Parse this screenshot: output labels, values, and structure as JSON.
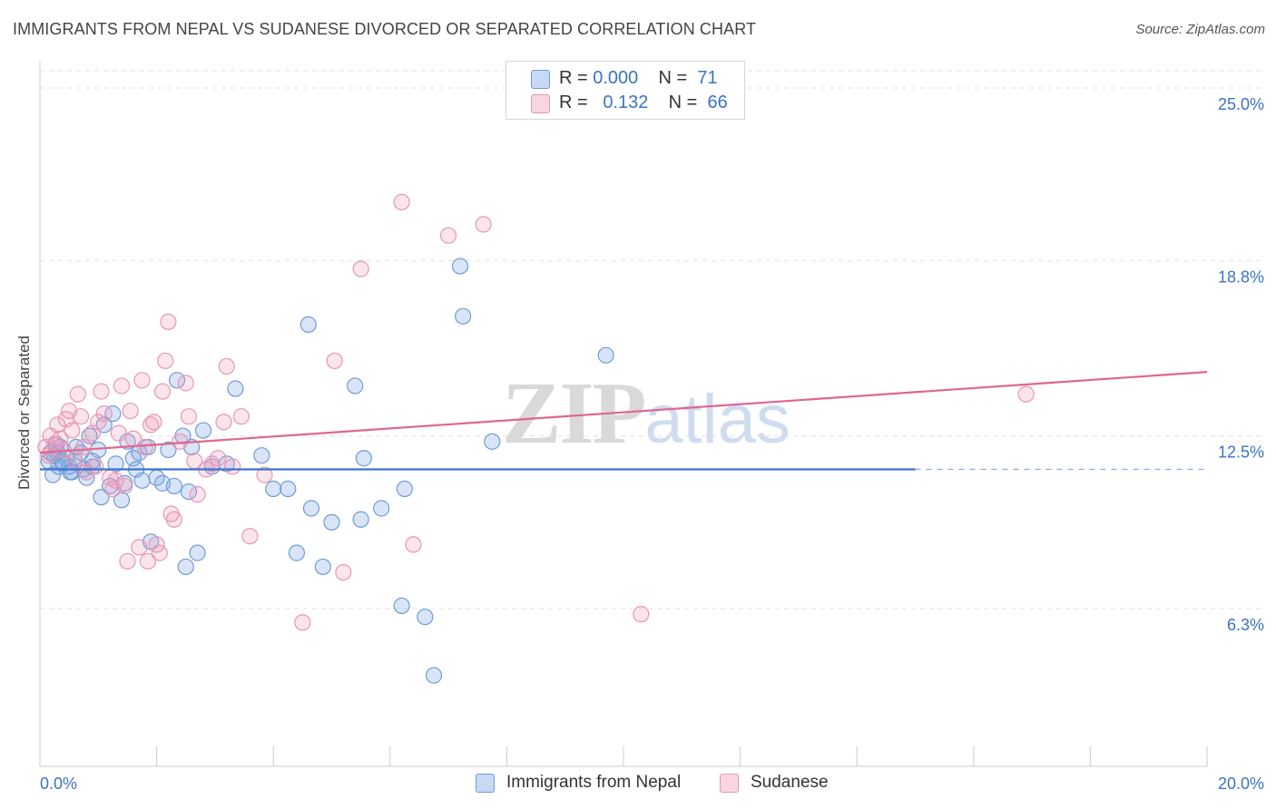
{
  "title": "IMMIGRANTS FROM NEPAL VS SUDANESE DIVORCED OR SEPARATED CORRELATION CHART",
  "source": "Source: ZipAtlas.com",
  "watermark": {
    "zip": "ZIP",
    "atlas": "atlas"
  },
  "legend_top": [
    {
      "r_label": "R =",
      "r_value": "0.000",
      "n_label": "N =",
      "n_value": "71"
    },
    {
      "r_label": "R =",
      "r_value": "0.132",
      "n_label": "N =",
      "n_value": "66"
    }
  ],
  "colors": {
    "nepal_fill": "rgba(130,170,230,0.30)",
    "nepal_stroke": "#6f9bd8",
    "nepal_line": "#3a74d1",
    "sudan_fill": "rgba(240,150,180,0.25)",
    "sudan_stroke": "#e597b4",
    "sudan_line": "#e0668f",
    "grid": "#e0e0e0",
    "tick_label": "#3b73c4"
  },
  "chart_data": {
    "type": "scatter",
    "title": "IMMIGRANTS FROM NEPAL VS SUDANESE DIVORCED OR SEPARATED CORRELATION CHART",
    "ylabel": "Divorced or Separated",
    "xlabel": "",
    "xlim": [
      0,
      20
    ],
    "ylim": [
      0,
      26.0
    ],
    "x_ticks_labels": [
      "0.0%",
      "20.0%"
    ],
    "y_ticks": [
      6.3,
      12.5,
      18.8,
      25.0
    ],
    "y_tick_labels": [
      "6.3%",
      "12.5%",
      "18.8%",
      "25.0%"
    ],
    "grid": "horizontal dashed",
    "legend_position": "bottom-center",
    "series": [
      {
        "name": "Immigrants from Nepal",
        "R": 0.0,
        "N": 71,
        "trend": {
          "x": [
            0,
            15.0
          ],
          "y": [
            11.3,
            11.3
          ],
          "dashed_extension_to": 20.0
        },
        "points": [
          [
            0.15,
            11.6
          ],
          [
            0.25,
            11.8
          ],
          [
            0.3,
            11.9
          ],
          [
            0.35,
            12.1
          ],
          [
            0.4,
            11.5
          ],
          [
            0.45,
            11.7
          ],
          [
            0.5,
            11.4
          ],
          [
            0.55,
            11.2
          ],
          [
            0.6,
            11.6
          ],
          [
            0.7,
            11.9
          ],
          [
            0.75,
            11.3
          ],
          [
            0.8,
            11.0
          ],
          [
            0.85,
            12.5
          ],
          [
            0.9,
            11.4
          ],
          [
            1.0,
            12.0
          ],
          [
            1.05,
            10.3
          ],
          [
            1.1,
            12.9
          ],
          [
            1.2,
            10.7
          ],
          [
            1.25,
            13.3
          ],
          [
            1.3,
            11.5
          ],
          [
            1.4,
            10.2
          ],
          [
            1.45,
            10.8
          ],
          [
            1.5,
            12.3
          ],
          [
            1.6,
            11.7
          ],
          [
            1.7,
            11.9
          ],
          [
            1.75,
            10.9
          ],
          [
            1.85,
            12.1
          ],
          [
            1.9,
            8.7
          ],
          [
            2.0,
            11.0
          ],
          [
            2.1,
            10.8
          ],
          [
            2.2,
            12.0
          ],
          [
            2.3,
            10.7
          ],
          [
            2.35,
            14.5
          ],
          [
            2.45,
            12.5
          ],
          [
            2.55,
            10.5
          ],
          [
            2.6,
            12.1
          ],
          [
            2.7,
            8.3
          ],
          [
            2.8,
            12.7
          ],
          [
            2.95,
            11.4
          ],
          [
            3.2,
            11.5
          ],
          [
            3.35,
            14.2
          ],
          [
            3.8,
            11.8
          ],
          [
            4.0,
            10.6
          ],
          [
            4.25,
            10.6
          ],
          [
            4.4,
            8.3
          ],
          [
            4.6,
            16.5
          ],
          [
            4.65,
            9.9
          ],
          [
            4.85,
            7.8
          ],
          [
            5.0,
            9.4
          ],
          [
            5.4,
            14.3
          ],
          [
            5.5,
            9.5
          ],
          [
            5.55,
            11.7
          ],
          [
            5.85,
            9.9
          ],
          [
            6.2,
            6.4
          ],
          [
            6.25,
            10.6
          ],
          [
            6.6,
            6.0
          ],
          [
            6.75,
            3.9
          ],
          [
            7.2,
            18.6
          ],
          [
            7.25,
            16.8
          ],
          [
            7.75,
            12.3
          ],
          [
            9.7,
            15.4
          ],
          [
            0.18,
            11.9
          ],
          [
            0.22,
            11.1
          ],
          [
            0.28,
            12.2
          ],
          [
            0.32,
            11.4
          ],
          [
            0.38,
            11.6
          ],
          [
            0.52,
            11.2
          ],
          [
            0.62,
            12.1
          ],
          [
            0.9,
            11.6
          ],
          [
            2.5,
            7.8
          ],
          [
            1.65,
            11.3
          ]
        ]
      },
      {
        "name": "Sudanese",
        "R": 0.132,
        "N": 66,
        "trend": {
          "x": [
            0,
            20.0
          ],
          "y": [
            11.9,
            14.8
          ]
        },
        "points": [
          [
            0.1,
            12.1
          ],
          [
            0.18,
            12.5
          ],
          [
            0.25,
            12.2
          ],
          [
            0.3,
            12.9
          ],
          [
            0.4,
            12.0
          ],
          [
            0.45,
            13.1
          ],
          [
            0.5,
            13.4
          ],
          [
            0.55,
            12.7
          ],
          [
            0.6,
            11.6
          ],
          [
            0.65,
            14.0
          ],
          [
            0.7,
            13.2
          ],
          [
            0.75,
            12.1
          ],
          [
            0.8,
            11.2
          ],
          [
            0.9,
            12.6
          ],
          [
            0.95,
            11.4
          ],
          [
            1.0,
            13.0
          ],
          [
            1.05,
            14.1
          ],
          [
            1.1,
            13.3
          ],
          [
            1.2,
            11.0
          ],
          [
            1.25,
            10.6
          ],
          [
            1.3,
            10.9
          ],
          [
            1.35,
            12.6
          ],
          [
            1.4,
            14.3
          ],
          [
            1.45,
            10.7
          ],
          [
            1.5,
            8.0
          ],
          [
            1.55,
            13.4
          ],
          [
            1.6,
            12.4
          ],
          [
            1.7,
            8.5
          ],
          [
            1.75,
            14.5
          ],
          [
            1.8,
            12.1
          ],
          [
            1.85,
            8.0
          ],
          [
            1.9,
            12.9
          ],
          [
            1.95,
            13.0
          ],
          [
            2.0,
            8.6
          ],
          [
            2.05,
            8.3
          ],
          [
            2.1,
            14.1
          ],
          [
            2.15,
            15.2
          ],
          [
            2.2,
            16.6
          ],
          [
            2.25,
            9.7
          ],
          [
            2.3,
            9.5
          ],
          [
            2.4,
            12.3
          ],
          [
            2.5,
            14.4
          ],
          [
            2.55,
            13.2
          ],
          [
            2.65,
            11.6
          ],
          [
            2.7,
            10.4
          ],
          [
            2.85,
            11.3
          ],
          [
            2.95,
            11.5
          ],
          [
            3.05,
            11.7
          ],
          [
            3.15,
            13.0
          ],
          [
            3.2,
            15.0
          ],
          [
            3.3,
            11.4
          ],
          [
            3.45,
            13.2
          ],
          [
            3.6,
            8.9
          ],
          [
            3.85,
            11.1
          ],
          [
            4.5,
            5.8
          ],
          [
            5.05,
            15.2
          ],
          [
            5.2,
            7.6
          ],
          [
            5.5,
            18.5
          ],
          [
            6.2,
            20.9
          ],
          [
            6.4,
            8.6
          ],
          [
            7.0,
            19.7
          ],
          [
            7.6,
            20.1
          ],
          [
            10.3,
            6.1
          ],
          [
            16.9,
            14.0
          ],
          [
            0.35,
            12.4
          ],
          [
            0.15,
            11.8
          ]
        ]
      }
    ]
  },
  "legend_bottom": [
    {
      "label": "Immigrants from Nepal"
    },
    {
      "label": "Sudanese"
    }
  ]
}
